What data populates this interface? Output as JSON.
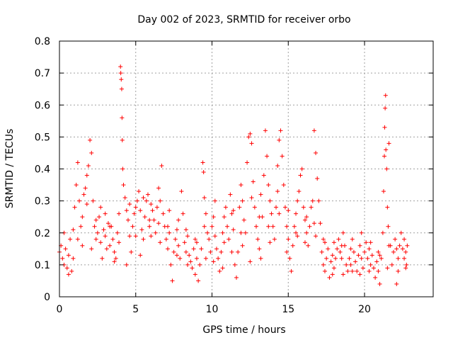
{
  "chart_data": {
    "type": "scatter",
    "title": "Day 002 of 2023, SRMTID for receiver orbo",
    "xlabel": "GPS time / hours",
    "ylabel": "SRMTID / TECUs",
    "xlim": [
      0,
      24.5
    ],
    "ylim": [
      0,
      0.8
    ],
    "xticks": [
      0,
      5,
      10,
      15,
      20
    ],
    "xtick_labels": [
      "0",
      "5",
      "10",
      "15",
      "20"
    ],
    "yticks": [
      0,
      0.1,
      0.2,
      0.3,
      0.4,
      0.5,
      0.6,
      0.7,
      0.8
    ],
    "ytick_labels": [
      "0",
      "0.1",
      "0.2",
      "0.3",
      "0.4",
      "0.5",
      "0.6",
      "0.7",
      "0.8"
    ],
    "grid": true,
    "marker": "+",
    "color": "#ff0000",
    "series": [
      {
        "name": "SRMTID",
        "points": [
          [
            0.0,
            0.14
          ],
          [
            0.1,
            0.16
          ],
          [
            0.2,
            0.12
          ],
          [
            0.3,
            0.1
          ],
          [
            0.4,
            0.15
          ],
          [
            0.5,
            0.09
          ],
          [
            0.6,
            0.13
          ],
          [
            0.7,
            0.18
          ],
          [
            0.8,
            0.08
          ],
          [
            0.9,
            0.12
          ],
          [
            1.0,
            0.28
          ],
          [
            1.1,
            0.35
          ],
          [
            1.2,
            0.42
          ],
          [
            1.3,
            0.3
          ],
          [
            1.4,
            0.22
          ],
          [
            1.5,
            0.25
          ],
          [
            1.6,
            0.32
          ],
          [
            1.7,
            0.34
          ],
          [
            1.8,
            0.38
          ],
          [
            1.9,
            0.41
          ],
          [
            2.0,
            0.49
          ],
          [
            2.1,
            0.45
          ],
          [
            2.2,
            0.3
          ],
          [
            2.3,
            0.22
          ],
          [
            2.4,
            0.18
          ],
          [
            2.5,
            0.2
          ],
          [
            2.6,
            0.25
          ],
          [
            2.7,
            0.17
          ],
          [
            2.8,
            0.12
          ],
          [
            2.9,
            0.21
          ],
          [
            3.0,
            0.19
          ],
          [
            3.1,
            0.15
          ],
          [
            3.2,
            0.23
          ],
          [
            3.3,
            0.16
          ],
          [
            3.4,
            0.22
          ],
          [
            3.5,
            0.18
          ],
          [
            3.6,
            0.14
          ],
          [
            3.7,
            0.12
          ],
          [
            3.8,
            0.2
          ],
          [
            3.9,
            0.26
          ],
          [
            4.0,
            0.72
          ],
          [
            4.02,
            0.7
          ],
          [
            4.05,
            0.68
          ],
          [
            4.08,
            0.65
          ],
          [
            4.1,
            0.56
          ],
          [
            4.12,
            0.49
          ],
          [
            4.15,
            0.4
          ],
          [
            4.2,
            0.35
          ],
          [
            4.3,
            0.31
          ],
          [
            4.4,
            0.27
          ],
          [
            4.5,
            0.24
          ],
          [
            4.6,
            0.19
          ],
          [
            4.7,
            0.14
          ],
          [
            4.8,
            0.22
          ],
          [
            4.9,
            0.26
          ],
          [
            5.0,
            0.28
          ],
          [
            5.1,
            0.3
          ],
          [
            5.2,
            0.33
          ],
          [
            5.3,
            0.27
          ],
          [
            5.4,
            0.21
          ],
          [
            5.5,
            0.18
          ],
          [
            5.6,
            0.25
          ],
          [
            5.7,
            0.3
          ],
          [
            5.8,
            0.32
          ],
          [
            5.9,
            0.22
          ],
          [
            6.0,
            0.19
          ],
          [
            6.1,
            0.27
          ],
          [
            6.2,
            0.24
          ],
          [
            6.3,
            0.2
          ],
          [
            6.4,
            0.28
          ],
          [
            6.5,
            0.34
          ],
          [
            6.6,
            0.3
          ],
          [
            6.7,
            0.41
          ],
          [
            6.8,
            0.26
          ],
          [
            6.9,
            0.22
          ],
          [
            7.0,
            0.18
          ],
          [
            7.1,
            0.15
          ],
          [
            7.2,
            0.2
          ],
          [
            7.3,
            0.1
          ],
          [
            7.4,
            0.05
          ],
          [
            7.5,
            0.14
          ],
          [
            7.6,
            0.18
          ],
          [
            7.7,
            0.21
          ],
          [
            7.8,
            0.16
          ],
          [
            7.9,
            0.12
          ],
          [
            8.0,
            0.33
          ],
          [
            8.1,
            0.26
          ],
          [
            8.2,
            0.17
          ],
          [
            8.3,
            0.14
          ],
          [
            8.4,
            0.1
          ],
          [
            8.5,
            0.13
          ],
          [
            8.6,
            0.11
          ],
          [
            8.7,
            0.09
          ],
          [
            8.8,
            0.15
          ],
          [
            8.9,
            0.18
          ],
          [
            9.0,
            0.12
          ],
          [
            9.1,
            0.05
          ],
          [
            9.2,
            0.1
          ],
          [
            9.3,
            0.15
          ],
          [
            9.4,
            0.42
          ],
          [
            9.45,
            0.39
          ],
          [
            9.5,
            0.31
          ],
          [
            9.6,
            0.26
          ],
          [
            9.7,
            0.2
          ],
          [
            9.8,
            0.18
          ],
          [
            9.9,
            0.14
          ],
          [
            10.0,
            0.22
          ],
          [
            10.1,
            0.25
          ],
          [
            10.2,
            0.19
          ],
          [
            10.3,
            0.15
          ],
          [
            10.4,
            0.12
          ],
          [
            10.5,
            0.08
          ],
          [
            10.6,
            0.14
          ],
          [
            10.7,
            0.2
          ],
          [
            10.8,
            0.25
          ],
          [
            10.9,
            0.28
          ],
          [
            11.0,
            0.22
          ],
          [
            11.1,
            0.18
          ],
          [
            11.2,
            0.32
          ],
          [
            11.3,
            0.26
          ],
          [
            11.4,
            0.21
          ],
          [
            11.5,
            0.1
          ],
          [
            11.6,
            0.06
          ],
          [
            11.7,
            0.14
          ],
          [
            11.8,
            0.28
          ],
          [
            11.9,
            0.35
          ],
          [
            12.0,
            0.3
          ],
          [
            12.1,
            0.24
          ],
          [
            12.2,
            0.2
          ],
          [
            12.3,
            0.42
          ],
          [
            12.4,
            0.5
          ],
          [
            12.5,
            0.51
          ],
          [
            12.6,
            0.48
          ],
          [
            12.7,
            0.36
          ],
          [
            12.8,
            0.28
          ],
          [
            12.9,
            0.22
          ],
          [
            13.0,
            0.18
          ],
          [
            13.1,
            0.15
          ],
          [
            13.2,
            0.12
          ],
          [
            13.3,
            0.25
          ],
          [
            13.4,
            0.38
          ],
          [
            13.5,
            0.52
          ],
          [
            13.6,
            0.44
          ],
          [
            13.7,
            0.35
          ],
          [
            13.8,
            0.3
          ],
          [
            13.9,
            0.26
          ],
          [
            14.0,
            0.22
          ],
          [
            14.1,
            0.18
          ],
          [
            14.2,
            0.28
          ],
          [
            14.3,
            0.41
          ],
          [
            14.4,
            0.49
          ],
          [
            14.5,
            0.52
          ],
          [
            14.6,
            0.44
          ],
          [
            14.7,
            0.35
          ],
          [
            14.8,
            0.28
          ],
          [
            14.9,
            0.22
          ],
          [
            15.0,
            0.18
          ],
          [
            15.1,
            0.12
          ],
          [
            15.2,
            0.08
          ],
          [
            15.3,
            0.16
          ],
          [
            15.4,
            0.22
          ],
          [
            15.5,
            0.26
          ],
          [
            15.6,
            0.3
          ],
          [
            15.7,
            0.33
          ],
          [
            15.8,
            0.38
          ],
          [
            15.9,
            0.4
          ],
          [
            16.0,
            0.28
          ],
          [
            16.1,
            0.24
          ],
          [
            16.2,
            0.2
          ],
          [
            16.3,
            0.16
          ],
          [
            16.4,
            0.22
          ],
          [
            16.5,
            0.28
          ],
          [
            16.6,
            0.3
          ],
          [
            16.7,
            0.52
          ],
          [
            16.8,
            0.45
          ],
          [
            16.9,
            0.37
          ],
          [
            17.0,
            0.3
          ],
          [
            17.1,
            0.23
          ],
          [
            17.2,
            0.14
          ],
          [
            17.3,
            0.1
          ],
          [
            17.4,
            0.08
          ],
          [
            17.5,
            0.12
          ],
          [
            17.6,
            0.15
          ],
          [
            17.7,
            0.06
          ],
          [
            17.8,
            0.11
          ],
          [
            17.9,
            0.13
          ],
          [
            18.0,
            0.09
          ],
          [
            18.1,
            0.12
          ],
          [
            18.2,
            0.15
          ],
          [
            18.3,
            0.18
          ],
          [
            18.4,
            0.14
          ],
          [
            18.5,
            0.12
          ],
          [
            18.6,
            0.2
          ],
          [
            18.7,
            0.16
          ],
          [
            18.8,
            0.1
          ],
          [
            18.9,
            0.08
          ],
          [
            19.0,
            0.12
          ],
          [
            19.1,
            0.15
          ],
          [
            19.2,
            0.18
          ],
          [
            19.3,
            0.14
          ],
          [
            19.4,
            0.11
          ],
          [
            19.5,
            0.08
          ],
          [
            19.6,
            0.13
          ],
          [
            19.7,
            0.16
          ],
          [
            19.8,
            0.12
          ],
          [
            19.9,
            0.09
          ],
          [
            20.0,
            0.14
          ],
          [
            20.1,
            0.17
          ],
          [
            20.2,
            0.12
          ],
          [
            20.3,
            0.08
          ],
          [
            20.4,
            0.1
          ],
          [
            20.5,
            0.13
          ],
          [
            20.6,
            0.09
          ],
          [
            20.7,
            0.06
          ],
          [
            20.8,
            0.11
          ],
          [
            20.9,
            0.08
          ],
          [
            21.0,
            0.04
          ],
          [
            21.1,
            0.12
          ],
          [
            21.2,
            0.2
          ],
          [
            21.25,
            0.33
          ],
          [
            21.3,
            0.44
          ],
          [
            21.32,
            0.53
          ],
          [
            21.35,
            0.59
          ],
          [
            21.38,
            0.63
          ],
          [
            21.4,
            0.46
          ],
          [
            21.45,
            0.4
          ],
          [
            21.5,
            0.28
          ],
          [
            21.55,
            0.22
          ],
          [
            21.6,
            0.48
          ],
          [
            21.7,
            0.16
          ],
          [
            21.8,
            0.1
          ],
          [
            21.9,
            0.14
          ],
          [
            22.0,
            0.18
          ],
          [
            22.1,
            0.04
          ],
          [
            22.2,
            0.12
          ],
          [
            22.3,
            0.16
          ],
          [
            22.4,
            0.2
          ],
          [
            22.5,
            0.15
          ],
          [
            22.6,
            0.12
          ],
          [
            22.7,
            0.14
          ],
          [
            22.75,
            0.1
          ],
          [
            22.8,
            0.16
          ],
          [
            0.3,
            0.2
          ],
          [
            0.6,
            0.07
          ],
          [
            1.2,
            0.18
          ],
          [
            1.8,
            0.29
          ],
          [
            2.4,
            0.24
          ],
          [
            3.0,
            0.26
          ],
          [
            3.6,
            0.11
          ],
          [
            4.4,
            0.1
          ],
          [
            5.0,
            0.19
          ],
          [
            5.5,
            0.31
          ],
          [
            6.0,
            0.29
          ],
          [
            6.6,
            0.17
          ],
          [
            7.2,
            0.27
          ],
          [
            7.8,
            0.24
          ],
          [
            8.4,
            0.19
          ],
          [
            9.0,
            0.17
          ],
          [
            9.6,
            0.12
          ],
          [
            10.2,
            0.3
          ],
          [
            10.8,
            0.17
          ],
          [
            11.4,
            0.27
          ],
          [
            12.0,
            0.16
          ],
          [
            12.6,
            0.31
          ],
          [
            13.2,
            0.32
          ],
          [
            13.8,
            0.17
          ],
          [
            14.4,
            0.26
          ],
          [
            15.0,
            0.27
          ],
          [
            15.6,
            0.19
          ],
          [
            16.2,
            0.25
          ],
          [
            16.8,
            0.19
          ],
          [
            17.4,
            0.17
          ],
          [
            18.0,
            0.17
          ],
          [
            18.6,
            0.07
          ],
          [
            19.2,
            0.08
          ],
          [
            19.8,
            0.2
          ],
          [
            20.4,
            0.17
          ],
          [
            21.0,
            0.13
          ],
          [
            21.6,
            0.16
          ],
          [
            22.2,
            0.08
          ],
          [
            22.6,
            0.18
          ],
          [
            0.9,
            0.21
          ],
          [
            1.5,
            0.16
          ],
          [
            2.1,
            0.15
          ],
          [
            2.7,
            0.28
          ],
          [
            3.3,
            0.22
          ],
          [
            3.9,
            0.17
          ],
          [
            4.6,
            0.29
          ],
          [
            5.3,
            0.13
          ],
          [
            5.9,
            0.24
          ],
          [
            6.5,
            0.23
          ],
          [
            7.1,
            0.22
          ],
          [
            7.7,
            0.13
          ],
          [
            8.3,
            0.21
          ],
          [
            8.9,
            0.07
          ],
          [
            9.5,
            0.22
          ],
          [
            10.1,
            0.11
          ],
          [
            10.7,
            0.09
          ],
          [
            11.3,
            0.14
          ],
          [
            11.9,
            0.2
          ],
          [
            12.5,
            0.11
          ],
          [
            13.1,
            0.25
          ],
          [
            13.7,
            0.22
          ],
          [
            14.3,
            0.33
          ],
          [
            14.9,
            0.14
          ],
          [
            15.5,
            0.2
          ],
          [
            16.1,
            0.17
          ],
          [
            16.7,
            0.23
          ],
          [
            17.3,
            0.18
          ],
          [
            17.9,
            0.07
          ],
          [
            18.5,
            0.16
          ],
          [
            19.1,
            0.1
          ],
          [
            19.7,
            0.07
          ],
          [
            20.3,
            0.15
          ],
          [
            20.9,
            0.14
          ],
          [
            21.5,
            0.09
          ],
          [
            22.1,
            0.15
          ],
          [
            22.7,
            0.09
          ]
        ]
      }
    ]
  }
}
